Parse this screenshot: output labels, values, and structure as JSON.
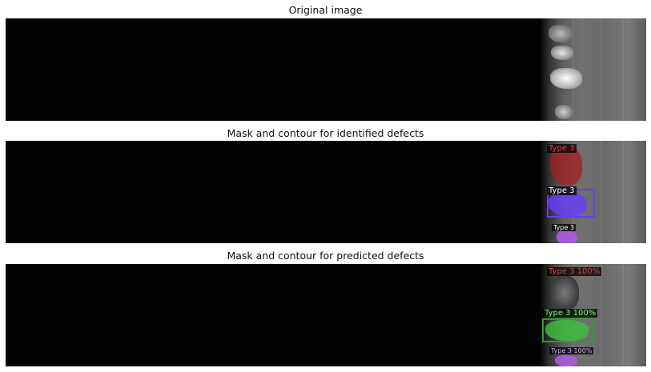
{
  "panels": [
    {
      "title": "Original image"
    },
    {
      "title": "Mask and contour for identified defects",
      "labels": [
        "Type 3",
        "Type 3",
        "Type 3"
      ]
    },
    {
      "title": "Mask and contour for predicted defects",
      "labels": [
        "Type 3 100%",
        "Type 3 100%",
        "Type 3 100%"
      ]
    }
  ],
  "colors": {
    "defect_red": "#c0282d",
    "defect_violet": "#6a3cff",
    "defect_green": "#39c43a",
    "defect_purple": "#b05ae6"
  }
}
